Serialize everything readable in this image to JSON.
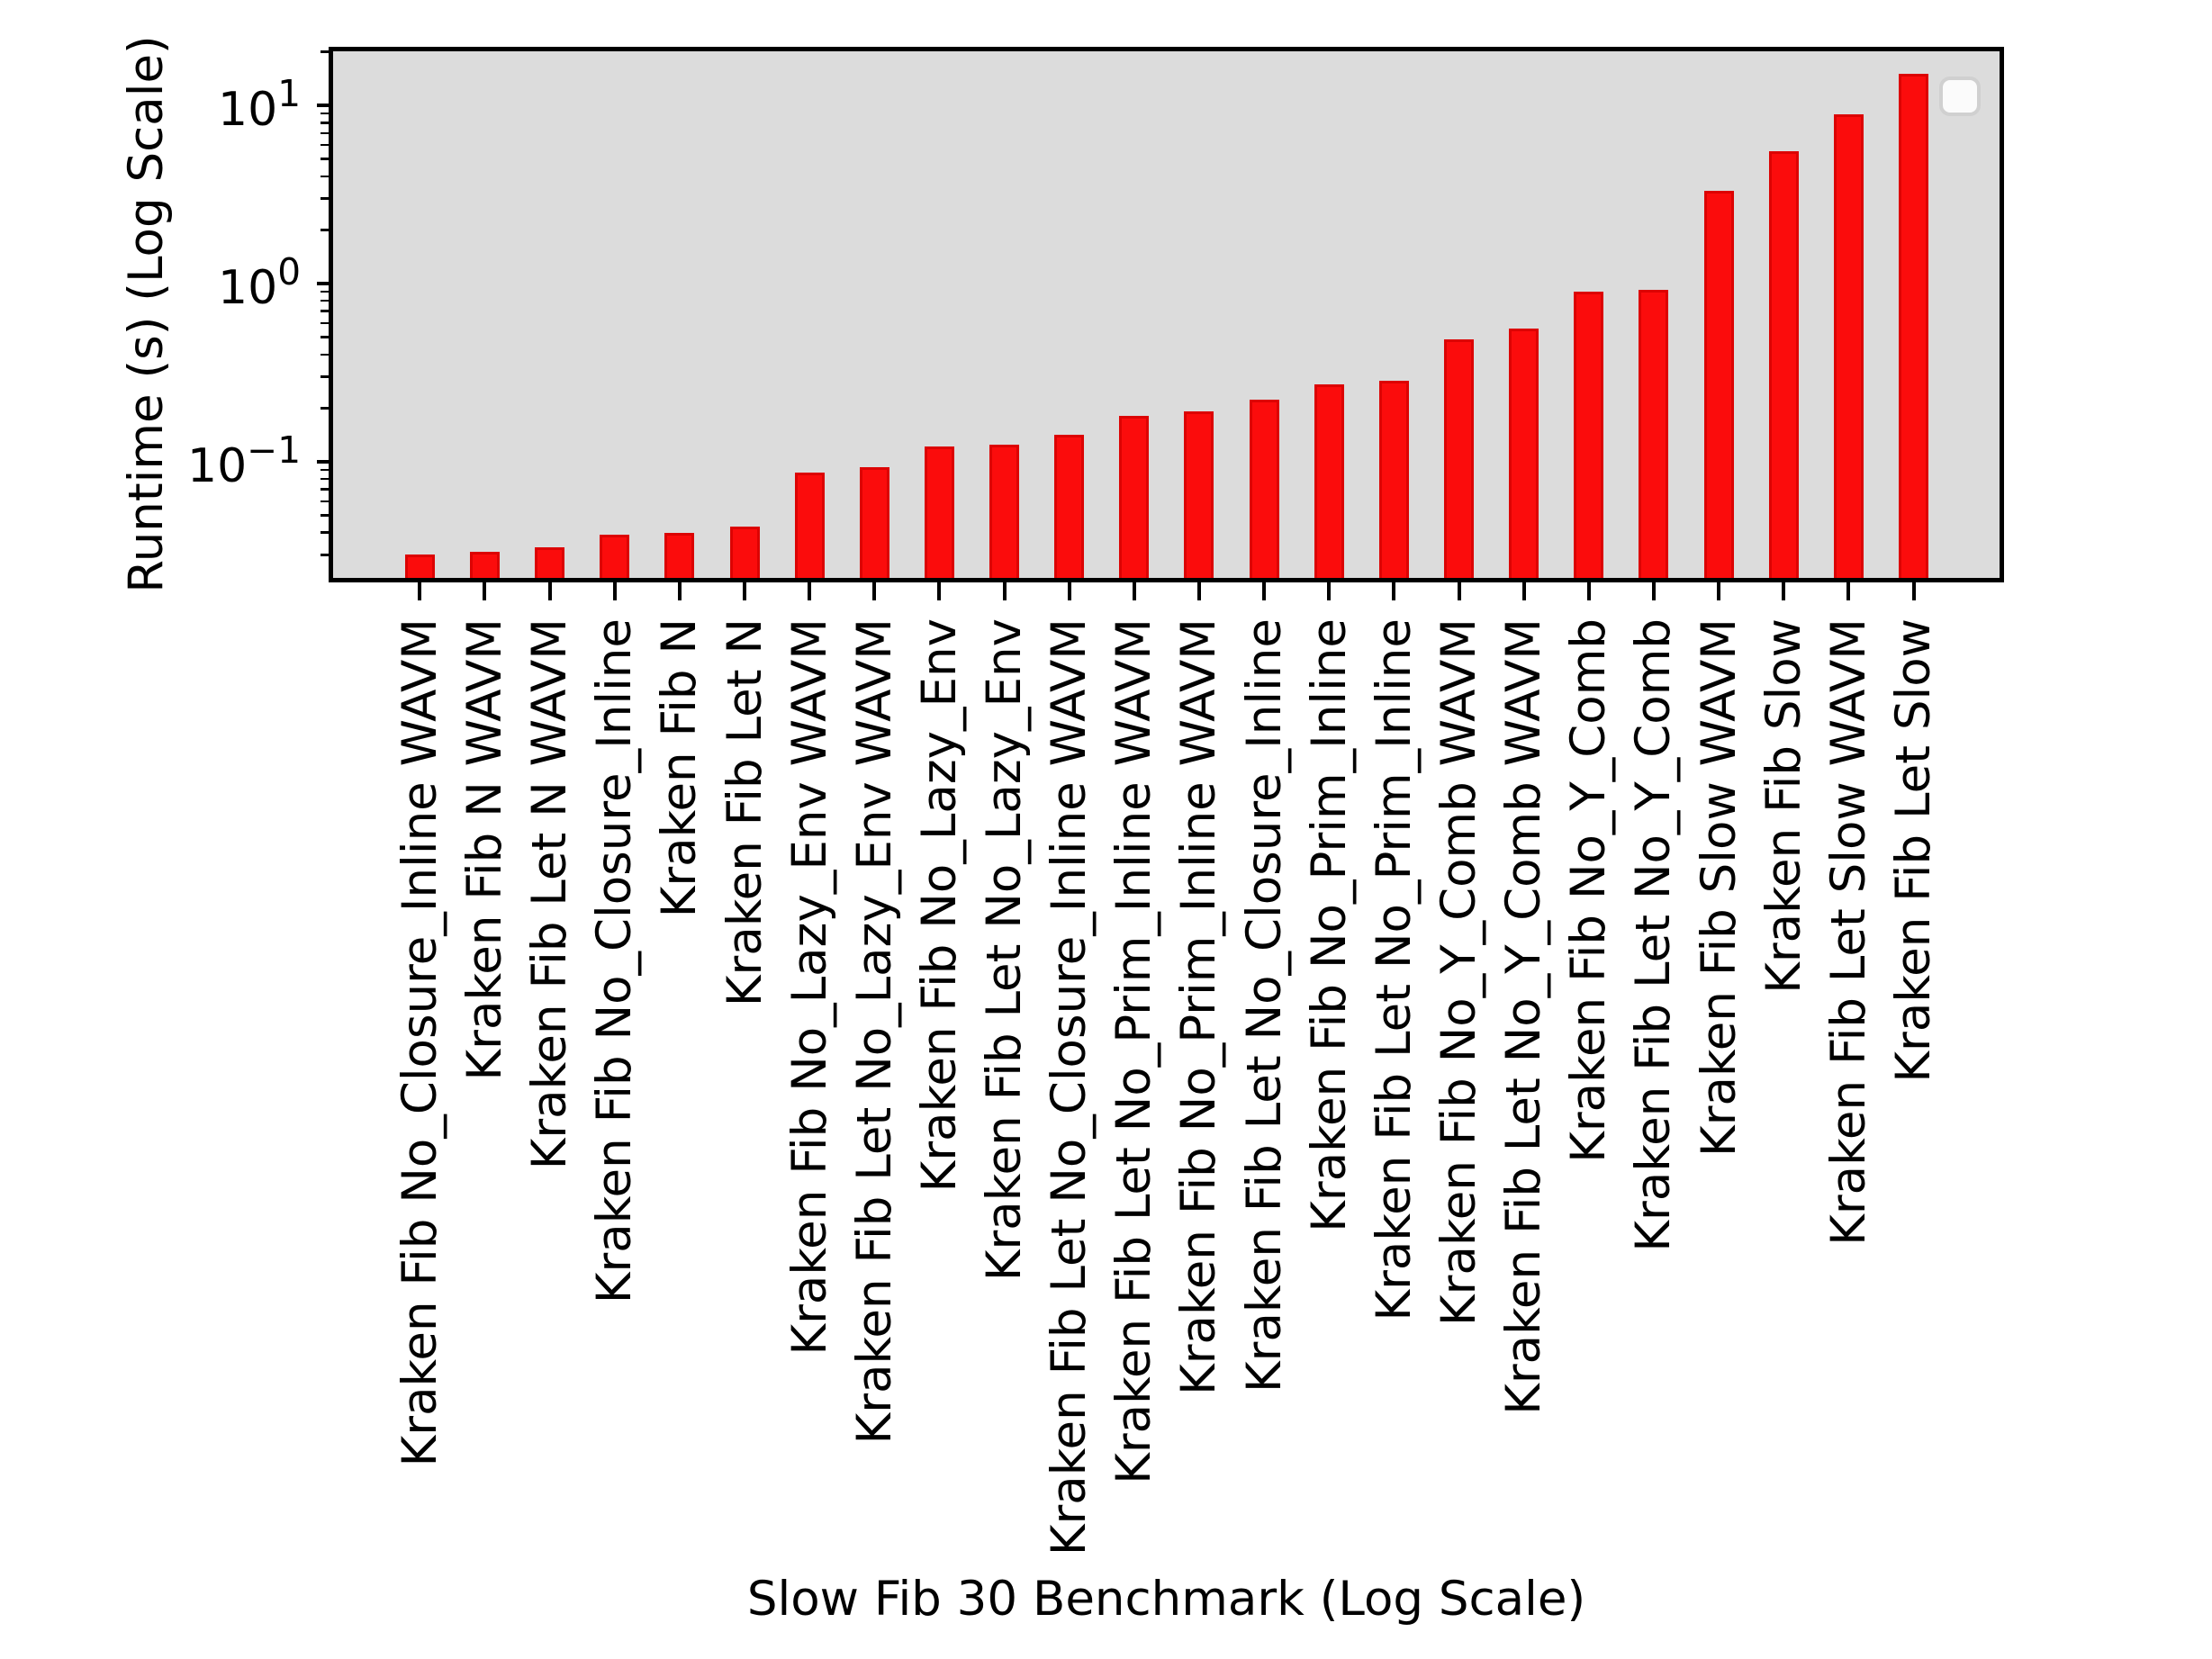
{
  "figure": {
    "background": "#ffffff",
    "plot_background": "#dcdcdc"
  },
  "chart_data": {
    "type": "bar",
    "title": "",
    "xlabel": "Slow Fib 30 Benchmark (Log Scale)",
    "ylabel": "Runtime (s) (Log Scale)",
    "yscale": "log",
    "ylim": [
      0.0219,
      20.6
    ],
    "ytick_exponents": [
      -1,
      0,
      1
    ],
    "grid": false,
    "legend": {
      "visible": true,
      "entries": []
    },
    "bar_color": "#fb0c0c",
    "bar_edge_color": "#dc0303",
    "categories": [
      "Kraken Fib No_Closure_Inline WAVM",
      "Kraken Fib N WAVM",
      "Kraken Fib Let N WAVM",
      "Kraken Fib No_Closure_Inline",
      "Kraken Fib N",
      "Kraken Fib Let N",
      "Kraken Fib No_Lazy_Env WAVM",
      "Kraken Fib Let No_Lazy_Env WAVM",
      "Kraken Fib No_Lazy_Env",
      "Kraken Fib Let No_Lazy_Env",
      "Kraken Fib Let No_Closure_Inline WAVM",
      "Kraken Fib Let No_Prim_Inline WAVM",
      "Kraken Fib No_Prim_Inline WAVM",
      "Kraken Fib Let No_Closure_Inline",
      "Kraken Fib No_Prim_Inline",
      "Kraken Fib Let No_Prim_Inline",
      "Kraken Fib No_Y_Comb WAVM",
      "Kraken Fib Let No_Y_Comb WAVM",
      "Kraken Fib No_Y_Comb",
      "Kraken Fib Let No_Y_Comb",
      "Kraken Fib Slow WAVM",
      "Kraken Fib Slow",
      "Kraken Fib Let Slow WAVM",
      "Kraken Fib Let Slow"
    ],
    "values": [
      0.03,
      0.0314,
      0.033,
      0.039,
      0.04,
      0.0432,
      0.087,
      0.093,
      0.122,
      0.124,
      0.1415,
      0.1816,
      0.1911,
      0.2224,
      0.2707,
      0.2863,
      0.4853,
      0.5591,
      0.8966,
      0.9239,
      3.299,
      5.513,
      8.885,
      15.05
    ]
  }
}
